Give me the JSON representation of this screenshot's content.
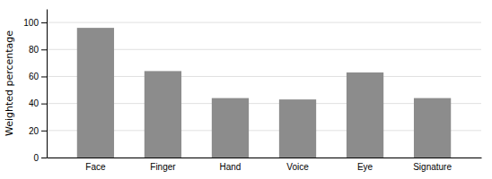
{
  "chart_data": {
    "type": "bar",
    "categories": [
      "Face",
      "Finger",
      "Hand",
      "Voice",
      "Eye",
      "Signature"
    ],
    "values": [
      96,
      64,
      44,
      43,
      63,
      44
    ],
    "color": "#8c8c8c",
    "y_label": "Weighted percentage",
    "ylim": [
      0,
      110
    ],
    "yticks": [
      0,
      20,
      40,
      60,
      80,
      100
    ],
    "grid": true
  }
}
